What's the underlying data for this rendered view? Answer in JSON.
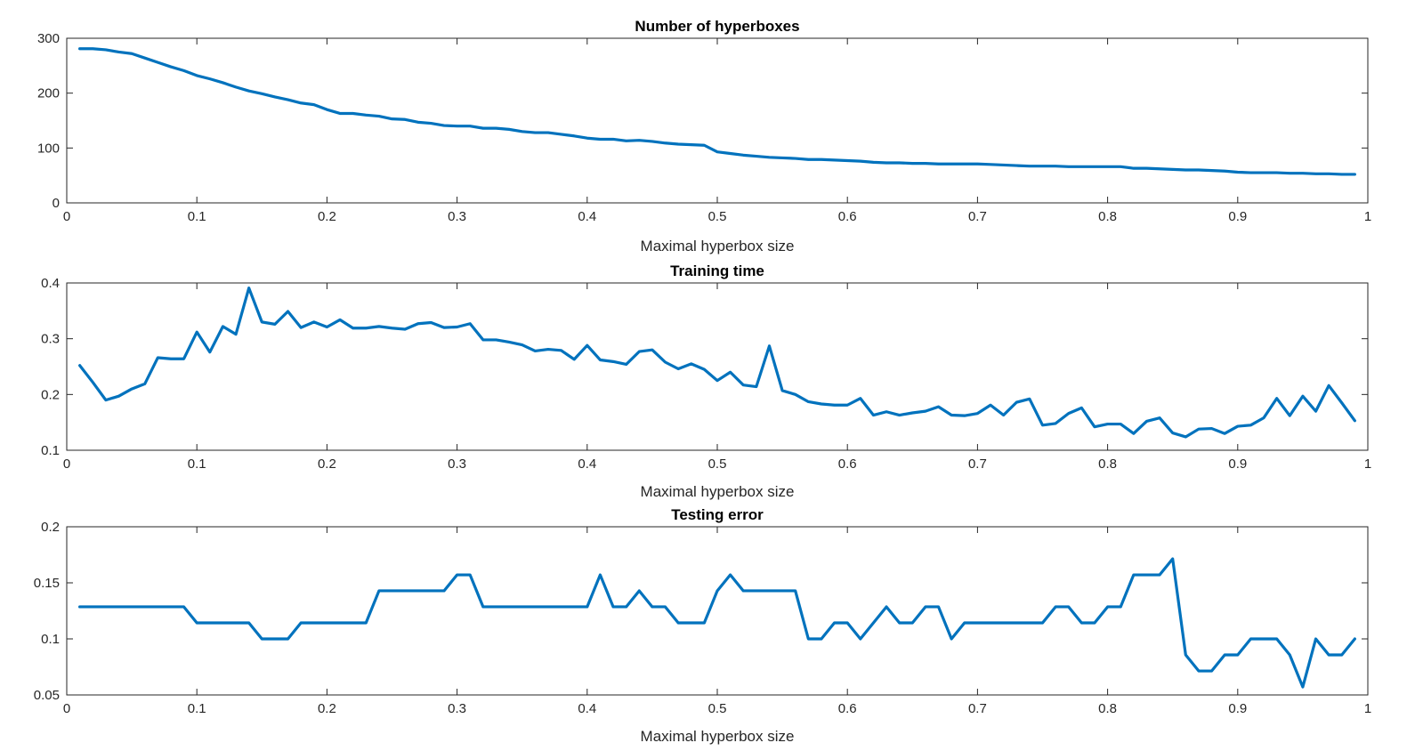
{
  "figure": {
    "background": "#ffffff",
    "line_color": "#0072BD"
  },
  "chart_data": [
    {
      "type": "line",
      "title": "Number of hyperboxes",
      "xlabel": "Maximal hyperbox size",
      "ylabel": "",
      "xlim": [
        0,
        1
      ],
      "ylim": [
        0,
        300
      ],
      "xticks": [
        0,
        0.1,
        0.2,
        0.3,
        0.4,
        0.5,
        0.6,
        0.7,
        0.8,
        0.9,
        1
      ],
      "xtick_labels": [
        "0",
        "0.1",
        "0.2",
        "0.3",
        "0.4",
        "0.5",
        "0.6",
        "0.7",
        "0.8",
        "0.9",
        "1"
      ],
      "yticks": [
        0,
        100,
        200,
        300
      ],
      "ytick_labels": [
        "0",
        "100",
        "200",
        "300"
      ],
      "grid": false,
      "x": [
        0.01,
        0.02,
        0.03,
        0.04,
        0.05,
        0.06,
        0.07,
        0.08,
        0.09,
        0.1,
        0.11,
        0.12,
        0.13,
        0.14,
        0.15,
        0.16,
        0.17,
        0.18,
        0.19,
        0.2,
        0.21,
        0.22,
        0.23,
        0.24,
        0.25,
        0.26,
        0.27,
        0.28,
        0.29,
        0.3,
        0.31,
        0.32,
        0.33,
        0.34,
        0.35,
        0.36,
        0.37,
        0.38,
        0.39,
        0.4,
        0.41,
        0.42,
        0.43,
        0.44,
        0.45,
        0.46,
        0.47,
        0.48,
        0.49,
        0.5,
        0.51,
        0.52,
        0.53,
        0.54,
        0.55,
        0.56,
        0.57,
        0.58,
        0.59,
        0.6,
        0.61,
        0.62,
        0.63,
        0.64,
        0.65,
        0.66,
        0.67,
        0.68,
        0.69,
        0.7,
        0.71,
        0.72,
        0.73,
        0.74,
        0.75,
        0.76,
        0.77,
        0.78,
        0.79,
        0.8,
        0.81,
        0.82,
        0.83,
        0.84,
        0.85,
        0.86,
        0.87,
        0.88,
        0.89,
        0.9,
        0.91,
        0.92,
        0.93,
        0.94,
        0.95,
        0.96,
        0.97,
        0.98,
        0.99
      ],
      "series": [
        {
          "values": [
            281,
            281,
            279,
            275,
            272,
            264,
            256,
            248,
            241,
            232,
            226,
            219,
            211,
            204,
            199,
            193,
            188,
            182,
            179,
            170,
            163,
            163,
            160,
            158,
            153,
            152,
            147,
            145,
            141,
            140,
            140,
            136,
            136,
            134,
            130,
            128,
            128,
            125,
            122,
            118,
            116,
            116,
            113,
            114,
            112,
            109,
            107,
            106,
            105,
            93,
            90,
            87,
            85,
            83,
            82,
            81,
            79,
            79,
            78,
            77,
            76,
            74,
            73,
            73,
            72,
            72,
            71,
            71,
            71,
            71,
            70,
            69,
            68,
            67,
            67,
            67,
            66,
            66,
            66,
            66,
            66,
            63,
            63,
            62,
            61,
            60,
            60,
            59,
            58,
            56,
            55,
            55,
            55,
            54,
            54,
            53,
            53,
            52,
            52
          ]
        }
      ]
    },
    {
      "type": "line",
      "title": "Training time",
      "xlabel": "Maximal hyperbox size",
      "ylabel": "",
      "xlim": [
        0,
        1
      ],
      "ylim": [
        0.1,
        0.4
      ],
      "xticks": [
        0,
        0.1,
        0.2,
        0.3,
        0.4,
        0.5,
        0.6,
        0.7,
        0.8,
        0.9,
        1
      ],
      "xtick_labels": [
        "0",
        "0.1",
        "0.2",
        "0.3",
        "0.4",
        "0.5",
        "0.6",
        "0.7",
        "0.8",
        "0.9",
        "1"
      ],
      "yticks": [
        0.1,
        0.2,
        0.3,
        0.4
      ],
      "ytick_labels": [
        "0.1",
        "0.2",
        "0.3",
        "0.4"
      ],
      "grid": false,
      "x": [
        0.01,
        0.02,
        0.03,
        0.04,
        0.05,
        0.06,
        0.07,
        0.08,
        0.09,
        0.1,
        0.11,
        0.12,
        0.13,
        0.14,
        0.15,
        0.16,
        0.17,
        0.18,
        0.19,
        0.2,
        0.21,
        0.22,
        0.23,
        0.24,
        0.25,
        0.26,
        0.27,
        0.28,
        0.29,
        0.3,
        0.31,
        0.32,
        0.33,
        0.34,
        0.35,
        0.36,
        0.37,
        0.38,
        0.39,
        0.4,
        0.41,
        0.42,
        0.43,
        0.44,
        0.45,
        0.46,
        0.47,
        0.48,
        0.49,
        0.5,
        0.51,
        0.52,
        0.53,
        0.54,
        0.55,
        0.56,
        0.57,
        0.58,
        0.59,
        0.6,
        0.61,
        0.62,
        0.63,
        0.64,
        0.65,
        0.66,
        0.67,
        0.68,
        0.69,
        0.7,
        0.71,
        0.72,
        0.73,
        0.74,
        0.75,
        0.76,
        0.77,
        0.78,
        0.79,
        0.8,
        0.81,
        0.82,
        0.83,
        0.84,
        0.85,
        0.86,
        0.87,
        0.88,
        0.89,
        0.9,
        0.91,
        0.92,
        0.93,
        0.94,
        0.95,
        0.96,
        0.97,
        0.98,
        0.99
      ],
      "series": [
        {
          "values": [
            0.252,
            0.222,
            0.19,
            0.197,
            0.21,
            0.219,
            0.266,
            0.264,
            0.264,
            0.312,
            0.276,
            0.322,
            0.308,
            0.391,
            0.33,
            0.326,
            0.349,
            0.32,
            0.33,
            0.321,
            0.334,
            0.319,
            0.319,
            0.322,
            0.319,
            0.317,
            0.327,
            0.329,
            0.32,
            0.321,
            0.327,
            0.298,
            0.298,
            0.294,
            0.289,
            0.278,
            0.281,
            0.279,
            0.263,
            0.288,
            0.262,
            0.259,
            0.254,
            0.277,
            0.28,
            0.258,
            0.246,
            0.255,
            0.245,
            0.225,
            0.24,
            0.217,
            0.214,
            0.287,
            0.207,
            0.2,
            0.187,
            0.183,
            0.181,
            0.181,
            0.193,
            0.163,
            0.169,
            0.163,
            0.167,
            0.17,
            0.178,
            0.163,
            0.162,
            0.166,
            0.181,
            0.163,
            0.186,
            0.192,
            0.145,
            0.148,
            0.166,
            0.176,
            0.142,
            0.147,
            0.147,
            0.13,
            0.152,
            0.158,
            0.131,
            0.124,
            0.138,
            0.139,
            0.13,
            0.143,
            0.145,
            0.158,
            0.193,
            0.162,
            0.197,
            0.17,
            0.216,
            0.185,
            0.153
          ]
        }
      ]
    },
    {
      "type": "line",
      "title": "Testing error",
      "xlabel": "Maximal hyperbox size",
      "ylabel": "",
      "xlim": [
        0,
        1
      ],
      "ylim": [
        0.05,
        0.2
      ],
      "xticks": [
        0,
        0.1,
        0.2,
        0.3,
        0.4,
        0.5,
        0.6,
        0.7,
        0.8,
        0.9,
        1
      ],
      "xtick_labels": [
        "0",
        "0.1",
        "0.2",
        "0.3",
        "0.4",
        "0.5",
        "0.6",
        "0.7",
        "0.8",
        "0.9",
        "1"
      ],
      "yticks": [
        0.05,
        0.1,
        0.15,
        0.2
      ],
      "ytick_labels": [
        "0.05",
        "0.1",
        "0.15",
        "0.2"
      ],
      "grid": false,
      "x": [
        0.01,
        0.02,
        0.03,
        0.04,
        0.05,
        0.06,
        0.07,
        0.08,
        0.09,
        0.1,
        0.11,
        0.12,
        0.13,
        0.14,
        0.15,
        0.16,
        0.17,
        0.18,
        0.19,
        0.2,
        0.21,
        0.22,
        0.23,
        0.24,
        0.25,
        0.26,
        0.27,
        0.28,
        0.29,
        0.3,
        0.31,
        0.32,
        0.33,
        0.34,
        0.35,
        0.36,
        0.37,
        0.38,
        0.39,
        0.4,
        0.41,
        0.42,
        0.43,
        0.44,
        0.45,
        0.46,
        0.47,
        0.48,
        0.49,
        0.5,
        0.51,
        0.52,
        0.53,
        0.54,
        0.55,
        0.56,
        0.57,
        0.58,
        0.59,
        0.6,
        0.61,
        0.62,
        0.63,
        0.64,
        0.65,
        0.66,
        0.67,
        0.68,
        0.69,
        0.7,
        0.71,
        0.72,
        0.73,
        0.74,
        0.75,
        0.76,
        0.77,
        0.78,
        0.79,
        0.8,
        0.81,
        0.82,
        0.83,
        0.84,
        0.85,
        0.86,
        0.87,
        0.88,
        0.89,
        0.9,
        0.91,
        0.92,
        0.93,
        0.94,
        0.95,
        0.96,
        0.97,
        0.98,
        0.99
      ],
      "series": [
        {
          "values": [
            0.1286,
            0.1286,
            0.1286,
            0.1286,
            0.1286,
            0.1286,
            0.1286,
            0.1286,
            0.1286,
            0.1143,
            0.1143,
            0.1143,
            0.1143,
            0.1143,
            0.1,
            0.1,
            0.1,
            0.1143,
            0.1143,
            0.1143,
            0.1143,
            0.1143,
            0.1143,
            0.1429,
            0.1429,
            0.1429,
            0.1429,
            0.1429,
            0.1429,
            0.1571,
            0.1571,
            0.1286,
            0.1286,
            0.1286,
            0.1286,
            0.1286,
            0.1286,
            0.1286,
            0.1286,
            0.1286,
            0.1571,
            0.1286,
            0.1286,
            0.1429,
            0.1286,
            0.1286,
            0.1143,
            0.1143,
            0.1143,
            0.1429,
            0.1571,
            0.1429,
            0.1429,
            0.1429,
            0.1429,
            0.1429,
            0.1,
            0.1,
            0.1143,
            0.1143,
            0.1,
            0.1143,
            0.1286,
            0.1143,
            0.1143,
            0.1286,
            0.1286,
            0.1,
            0.1143,
            0.1143,
            0.1143,
            0.1143,
            0.1143,
            0.1143,
            0.1143,
            0.1286,
            0.1286,
            0.1143,
            0.1143,
            0.1286,
            0.1286,
            0.1571,
            0.1571,
            0.1571,
            0.1714,
            0.0857,
            0.0714,
            0.0714,
            0.0857,
            0.0857,
            0.1,
            0.1,
            0.1,
            0.0857,
            0.0571,
            0.1,
            0.0857,
            0.0857,
            0.1
          ]
        }
      ]
    }
  ]
}
